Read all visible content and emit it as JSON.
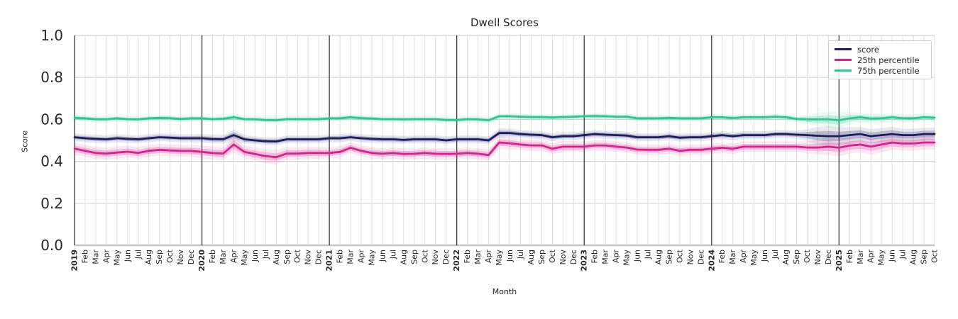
{
  "chart_data": {
    "type": "line",
    "title": "Dwell Scores",
    "xlabel": "Month",
    "ylabel": "Score",
    "ylim": [
      0.0,
      1.0
    ],
    "yticks": [
      "0.0",
      "0.2",
      "0.4",
      "0.6",
      "0.8",
      "1.0"
    ],
    "grid": true,
    "legend_position": "upper right",
    "x": [
      "2019",
      "Feb",
      "Mar",
      "Apr",
      "May",
      "Jun",
      "Jul",
      "Aug",
      "Sep",
      "Oct",
      "Nov",
      "Dec",
      "2020",
      "Feb",
      "Mar",
      "Apr",
      "May",
      "Jun",
      "Jul",
      "Aug",
      "Sep",
      "Oct",
      "Nov",
      "Dec",
      "2021",
      "Feb",
      "Mar",
      "Apr",
      "May",
      "Jun",
      "Jul",
      "Aug",
      "Sep",
      "Oct",
      "Nov",
      "Dec",
      "2022",
      "Feb",
      "Mar",
      "Apr",
      "May",
      "Jun",
      "Jul",
      "Aug",
      "Sep",
      "Oct",
      "Nov",
      "Dec",
      "2023",
      "Feb",
      "Mar",
      "Apr",
      "May",
      "Jun",
      "Jul",
      "Aug",
      "Sep",
      "Oct",
      "Nov",
      "Dec",
      "2024",
      "Feb",
      "Mar",
      "Apr",
      "May",
      "Jun",
      "Jul",
      "Aug",
      "Sep",
      "Oct",
      "Nov",
      "Dec",
      "2025",
      "Feb",
      "Mar",
      "Apr",
      "May",
      "Jun",
      "Jul",
      "Aug",
      "Sep",
      "Oct"
    ],
    "year_tick_indices": [
      0,
      12,
      24,
      36,
      48,
      60,
      72
    ],
    "series": [
      {
        "name": "score",
        "color": "#1c1c5e",
        "values": [
          0.515,
          0.51,
          0.507,
          0.505,
          0.51,
          0.507,
          0.505,
          0.51,
          0.515,
          0.513,
          0.51,
          0.51,
          0.51,
          0.506,
          0.505,
          0.525,
          0.505,
          0.5,
          0.496,
          0.495,
          0.505,
          0.505,
          0.505,
          0.505,
          0.51,
          0.51,
          0.515,
          0.51,
          0.507,
          0.505,
          0.505,
          0.502,
          0.505,
          0.505,
          0.505,
          0.5,
          0.505,
          0.505,
          0.505,
          0.5,
          0.535,
          0.535,
          0.53,
          0.527,
          0.525,
          0.515,
          0.52,
          0.52,
          0.525,
          0.53,
          0.527,
          0.525,
          0.523,
          0.515,
          0.515,
          0.515,
          0.52,
          0.513,
          0.515,
          0.515,
          0.52,
          0.525,
          0.52,
          0.525,
          0.525,
          0.525,
          0.53,
          0.53,
          0.527,
          0.525,
          0.522,
          0.52,
          0.52,
          0.525,
          0.53,
          0.52,
          0.525,
          0.53,
          0.525,
          0.525,
          0.53,
          0.53
        ],
        "band_halfwidth": [
          0.01,
          0.01,
          0.01,
          0.01,
          0.01,
          0.01,
          0.01,
          0.01,
          0.01,
          0.01,
          0.01,
          0.01,
          0.011,
          0.011,
          0.011,
          0.014,
          0.011,
          0.01,
          0.01,
          0.01,
          0.01,
          0.01,
          0.01,
          0.01,
          0.01,
          0.01,
          0.01,
          0.01,
          0.01,
          0.01,
          0.01,
          0.01,
          0.01,
          0.01,
          0.01,
          0.01,
          0.01,
          0.01,
          0.01,
          0.01,
          0.012,
          0.011,
          0.01,
          0.01,
          0.01,
          0.01,
          0.01,
          0.01,
          0.01,
          0.01,
          0.01,
          0.01,
          0.01,
          0.01,
          0.01,
          0.01,
          0.01,
          0.01,
          0.01,
          0.01,
          0.01,
          0.01,
          0.01,
          0.01,
          0.01,
          0.01,
          0.01,
          0.01,
          0.01,
          0.015,
          0.022,
          0.025,
          0.022,
          0.02,
          0.018,
          0.018,
          0.018,
          0.018,
          0.016,
          0.016,
          0.016,
          0.016
        ]
      },
      {
        "name": "25th percentile",
        "color": "#d9218e",
        "values": [
          0.46,
          0.45,
          0.44,
          0.437,
          0.442,
          0.446,
          0.44,
          0.45,
          0.455,
          0.452,
          0.45,
          0.45,
          0.445,
          0.44,
          0.437,
          0.48,
          0.445,
          0.435,
          0.425,
          0.42,
          0.437,
          0.437,
          0.44,
          0.44,
          0.44,
          0.445,
          0.465,
          0.45,
          0.44,
          0.436,
          0.44,
          0.435,
          0.436,
          0.44,
          0.436,
          0.435,
          0.436,
          0.44,
          0.436,
          0.43,
          0.49,
          0.486,
          0.48,
          0.476,
          0.476,
          0.46,
          0.47,
          0.47,
          0.47,
          0.476,
          0.476,
          0.47,
          0.466,
          0.456,
          0.455,
          0.455,
          0.46,
          0.45,
          0.455,
          0.455,
          0.46,
          0.465,
          0.46,
          0.47,
          0.47,
          0.47,
          0.47,
          0.47,
          0.47,
          0.466,
          0.466,
          0.47,
          0.465,
          0.475,
          0.48,
          0.47,
          0.48,
          0.49,
          0.485,
          0.485,
          0.49,
          0.49
        ],
        "band_halfwidth": [
          0.015,
          0.015,
          0.015,
          0.015,
          0.015,
          0.015,
          0.015,
          0.015,
          0.015,
          0.015,
          0.015,
          0.015,
          0.016,
          0.016,
          0.016,
          0.022,
          0.016,
          0.016,
          0.018,
          0.018,
          0.016,
          0.015,
          0.015,
          0.015,
          0.014,
          0.014,
          0.014,
          0.014,
          0.014,
          0.014,
          0.014,
          0.014,
          0.014,
          0.014,
          0.014,
          0.014,
          0.014,
          0.014,
          0.014,
          0.014,
          0.016,
          0.015,
          0.014,
          0.014,
          0.014,
          0.014,
          0.014,
          0.014,
          0.013,
          0.013,
          0.013,
          0.013,
          0.013,
          0.013,
          0.013,
          0.013,
          0.013,
          0.013,
          0.013,
          0.013,
          0.013,
          0.013,
          0.013,
          0.013,
          0.013,
          0.013,
          0.013,
          0.013,
          0.013,
          0.015,
          0.018,
          0.02,
          0.022,
          0.02,
          0.02,
          0.02,
          0.02,
          0.018,
          0.018,
          0.018,
          0.018,
          0.018
        ]
      },
      {
        "name": "75th percentile",
        "color": "#2cc594",
        "values": [
          0.607,
          0.605,
          0.601,
          0.6,
          0.605,
          0.601,
          0.6,
          0.605,
          0.607,
          0.606,
          0.602,
          0.605,
          0.605,
          0.601,
          0.603,
          0.61,
          0.601,
          0.6,
          0.597,
          0.596,
          0.601,
          0.601,
          0.601,
          0.601,
          0.605,
          0.605,
          0.61,
          0.606,
          0.604,
          0.601,
          0.601,
          0.6,
          0.601,
          0.601,
          0.601,
          0.597,
          0.597,
          0.601,
          0.6,
          0.596,
          0.615,
          0.615,
          0.613,
          0.611,
          0.611,
          0.609,
          0.611,
          0.613,
          0.615,
          0.616,
          0.615,
          0.613,
          0.613,
          0.605,
          0.605,
          0.605,
          0.607,
          0.605,
          0.605,
          0.605,
          0.61,
          0.61,
          0.606,
          0.61,
          0.61,
          0.61,
          0.613,
          0.61,
          0.602,
          0.6,
          0.6,
          0.6,
          0.596,
          0.605,
          0.61,
          0.604,
          0.605,
          0.61,
          0.605,
          0.605,
          0.61,
          0.608
        ],
        "band_halfwidth": [
          0.008,
          0.008,
          0.008,
          0.008,
          0.008,
          0.008,
          0.008,
          0.008,
          0.008,
          0.008,
          0.008,
          0.008,
          0.008,
          0.008,
          0.008,
          0.01,
          0.008,
          0.008,
          0.008,
          0.008,
          0.008,
          0.008,
          0.008,
          0.008,
          0.008,
          0.008,
          0.008,
          0.008,
          0.008,
          0.008,
          0.008,
          0.008,
          0.008,
          0.008,
          0.008,
          0.008,
          0.008,
          0.008,
          0.008,
          0.008,
          0.008,
          0.008,
          0.008,
          0.008,
          0.008,
          0.008,
          0.008,
          0.008,
          0.008,
          0.008,
          0.008,
          0.008,
          0.008,
          0.008,
          0.008,
          0.008,
          0.008,
          0.008,
          0.008,
          0.008,
          0.008,
          0.008,
          0.008,
          0.008,
          0.008,
          0.008,
          0.008,
          0.008,
          0.008,
          0.012,
          0.016,
          0.02,
          0.02,
          0.015,
          0.012,
          0.012,
          0.012,
          0.01,
          0.01,
          0.01,
          0.01,
          0.01
        ]
      }
    ]
  }
}
